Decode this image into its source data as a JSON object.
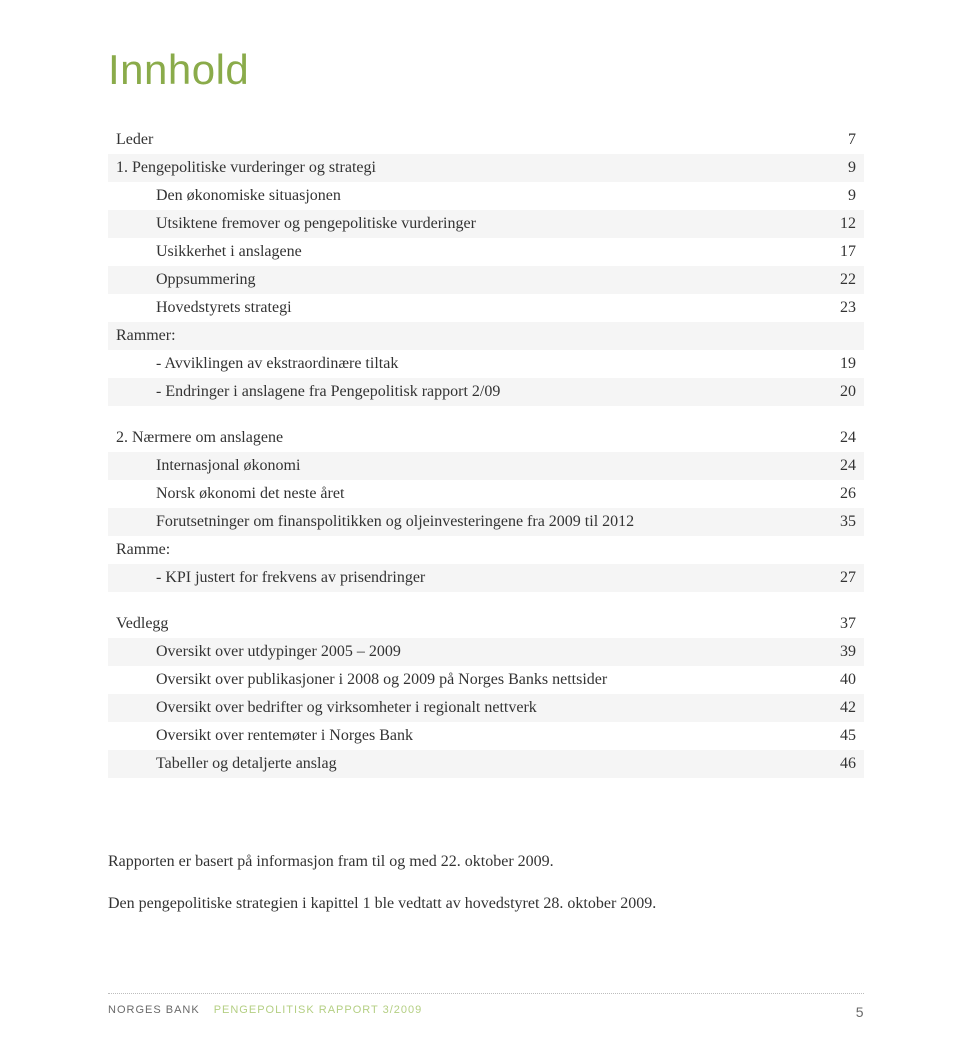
{
  "title": "Innhold",
  "toc": {
    "group1": [
      {
        "label": "Leder",
        "page": "7",
        "indent": 0,
        "zebra": false
      },
      {
        "label": "1. Pengepolitiske vurderinger og strategi",
        "page": "9",
        "indent": 0,
        "zebra": true
      },
      {
        "label": "Den økonomiske situasjonen",
        "page": "9",
        "indent": 1,
        "zebra": false
      },
      {
        "label": "Utsiktene fremover og pengepolitiske vurderinger",
        "page": "12",
        "indent": 1,
        "zebra": true
      },
      {
        "label": "Usikkerhet i anslagene",
        "page": "17",
        "indent": 1,
        "zebra": false
      },
      {
        "label": "Oppsummering",
        "page": "22",
        "indent": 1,
        "zebra": true
      },
      {
        "label": "Hovedstyrets strategi",
        "page": "23",
        "indent": 1,
        "zebra": false
      },
      {
        "label": "Rammer:",
        "page": "",
        "indent": 0,
        "zebra": true,
        "sectionhead": true
      },
      {
        "label": "- Avviklingen av ekstraordinære tiltak",
        "page": "19",
        "indent": 1,
        "zebra": false
      },
      {
        "label": "- Endringer i anslagene fra Pengepolitisk rapport 2/09",
        "page": "20",
        "indent": 1,
        "zebra": true
      }
    ],
    "group2": [
      {
        "label": "2. Nærmere om anslagene",
        "page": "24",
        "indent": 0,
        "zebra": false
      },
      {
        "label": "Internasjonal økonomi",
        "page": "24",
        "indent": 1,
        "zebra": true
      },
      {
        "label": "Norsk økonomi det neste året",
        "page": "26",
        "indent": 1,
        "zebra": false
      },
      {
        "label": "Forutsetninger om finanspolitikken og oljeinvesteringene fra 2009 til 2012",
        "page": "35",
        "indent": 1,
        "zebra": true
      },
      {
        "label": "Ramme:",
        "page": "",
        "indent": 0,
        "zebra": false,
        "sectionhead": true
      },
      {
        "label": "- KPI justert for frekvens av prisendringer",
        "page": "27",
        "indent": 1,
        "zebra": true
      }
    ],
    "group3": [
      {
        "label": "Vedlegg",
        "page": "37",
        "indent": 0,
        "zebra": false
      },
      {
        "label": "Oversikt over utdypinger 2005 – 2009",
        "page": "39",
        "indent": 1,
        "zebra": true
      },
      {
        "label": "Oversikt over publikasjoner i 2008 og 2009 på Norges Banks nettsider",
        "page": "40",
        "indent": 1,
        "zebra": false
      },
      {
        "label": "Oversikt over bedrifter og virksomheter i regionalt nettverk",
        "page": "42",
        "indent": 1,
        "zebra": true
      },
      {
        "label": "Oversikt over rentemøter i Norges Bank",
        "page": "45",
        "indent": 1,
        "zebra": false
      },
      {
        "label": "Tabeller og detaljerte anslag",
        "page": "46",
        "indent": 1,
        "zebra": true
      }
    ]
  },
  "body": {
    "p1": "Rapporten er basert på informasjon fram til og med 22. oktober 2009.",
    "p2": "Den pengepolitiske strategien i kapittel 1 ble vedtatt av hovedstyret 28. oktober 2009."
  },
  "footer": {
    "brand": "NORGES BANK",
    "doc": "PENGEPOLITISK RAPPORT 3/2009",
    "pagenum": "5"
  },
  "colors": {
    "accent": "#8aab4a",
    "footer_accent": "#b4cf83",
    "text": "#333333",
    "zebra": "#f5f5f5",
    "footer_text": "#6a6a6a",
    "dotted": "#bdbdbd",
    "bg": "#ffffff"
  },
  "typography": {
    "title_fontsize": 42,
    "body_fontsize": 16,
    "footer_fontsize": 11,
    "title_family": "Helvetica Neue",
    "body_family": "Georgia"
  }
}
